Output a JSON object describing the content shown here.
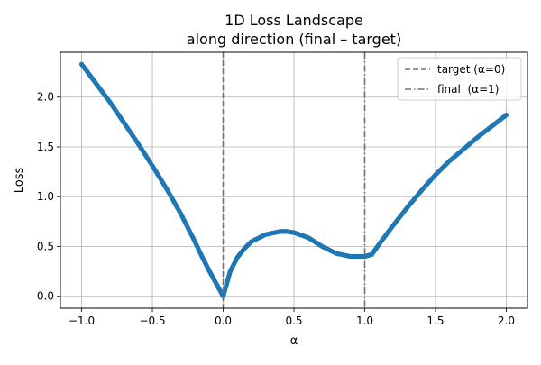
{
  "chart_data": {
    "type": "line",
    "title": "1D Loss Landscape",
    "subtitle": "along direction (final – target)",
    "xlabel": "α",
    "ylabel": "Loss",
    "xlim": [
      -1.15,
      2.15
    ],
    "ylim": [
      -0.12,
      2.45
    ],
    "xticks": [
      -1.0,
      -0.5,
      0.0,
      0.5,
      1.0,
      1.5,
      2.0
    ],
    "xtick_labels": [
      "−1.0",
      "−0.5",
      "0.0",
      "0.5",
      "1.0",
      "1.5",
      "2.0"
    ],
    "yticks": [
      0.0,
      0.5,
      1.0,
      1.5,
      2.0
    ],
    "ytick_labels": [
      "0.0",
      "0.5",
      "1.0",
      "1.5",
      "2.0"
    ],
    "grid": true,
    "legend_position": "top-right",
    "series": [
      {
        "name": "",
        "color": "#1f77b4",
        "x": [
          -1.0,
          -0.9,
          -0.8,
          -0.7,
          -0.6,
          -0.5,
          -0.4,
          -0.3,
          -0.2,
          -0.15,
          -0.1,
          -0.05,
          0.0,
          0.05,
          0.1,
          0.15,
          0.2,
          0.3,
          0.4,
          0.45,
          0.5,
          0.6,
          0.7,
          0.8,
          0.9,
          1.0,
          1.05,
          1.1,
          1.2,
          1.3,
          1.4,
          1.5,
          1.6,
          1.7,
          1.8,
          1.9,
          2.0
        ],
        "y": [
          2.33,
          2.14,
          1.95,
          1.74,
          1.53,
          1.31,
          1.08,
          0.83,
          0.55,
          0.4,
          0.26,
          0.13,
          0.0,
          0.25,
          0.39,
          0.48,
          0.55,
          0.62,
          0.65,
          0.65,
          0.64,
          0.59,
          0.5,
          0.43,
          0.4,
          0.4,
          0.42,
          0.52,
          0.71,
          0.89,
          1.06,
          1.22,
          1.36,
          1.48,
          1.6,
          1.71,
          1.82
        ]
      }
    ],
    "vlines": [
      {
        "name": "target (α=0)",
        "x": 0.0,
        "color": "#707070",
        "dash": "dashed"
      },
      {
        "name": "final  (α=1)",
        "x": 1.0,
        "color": "#707070",
        "dash": "dashdot"
      }
    ]
  }
}
